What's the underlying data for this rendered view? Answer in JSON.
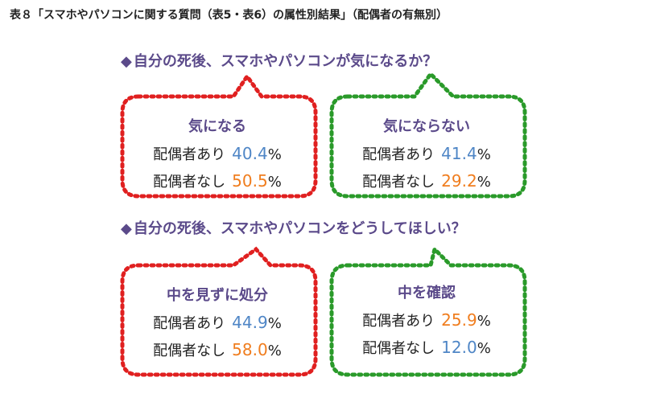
{
  "caption": "表８「スマホやパソコンに関する質問（表5・表6）の属性別結果」（配偶者の有無別）",
  "colors": {
    "red": "#e02020",
    "green": "#2a9a2a",
    "purple": "#5b4a8a",
    "blue": "#4f86c6",
    "orange": "#f07d1e"
  },
  "q1": {
    "marker": "◆",
    "text": "自分の死後、スマホやパソコンが気になるか？",
    "left": {
      "title": "気になる",
      "rows": [
        {
          "label": "配偶者あり",
          "value": "40.4",
          "unit": "%"
        },
        {
          "label": "配偶者なし",
          "value": "50.5",
          "unit": "%"
        }
      ]
    },
    "right": {
      "title": "気にならない",
      "rows": [
        {
          "label": "配偶者あり",
          "value": "41.4",
          "unit": "%"
        },
        {
          "label": "配偶者なし",
          "value": "29.2",
          "unit": "%"
        }
      ]
    }
  },
  "q2": {
    "marker": "◆",
    "text": "自分の死後、スマホやパソコンをどうしてほしい？",
    "left": {
      "title": "中を見ずに処分",
      "rows": [
        {
          "label": "配偶者あり",
          "value": "44.9",
          "unit": "%"
        },
        {
          "label": "配偶者なし",
          "value": "58.0",
          "unit": "%"
        }
      ]
    },
    "right": {
      "title": "中を確認",
      "rows": [
        {
          "label": "配偶者あり",
          "value": "25.9",
          "unit": "%"
        },
        {
          "label": "配偶者なし",
          "value": "12.0",
          "unit": "%"
        }
      ]
    }
  }
}
